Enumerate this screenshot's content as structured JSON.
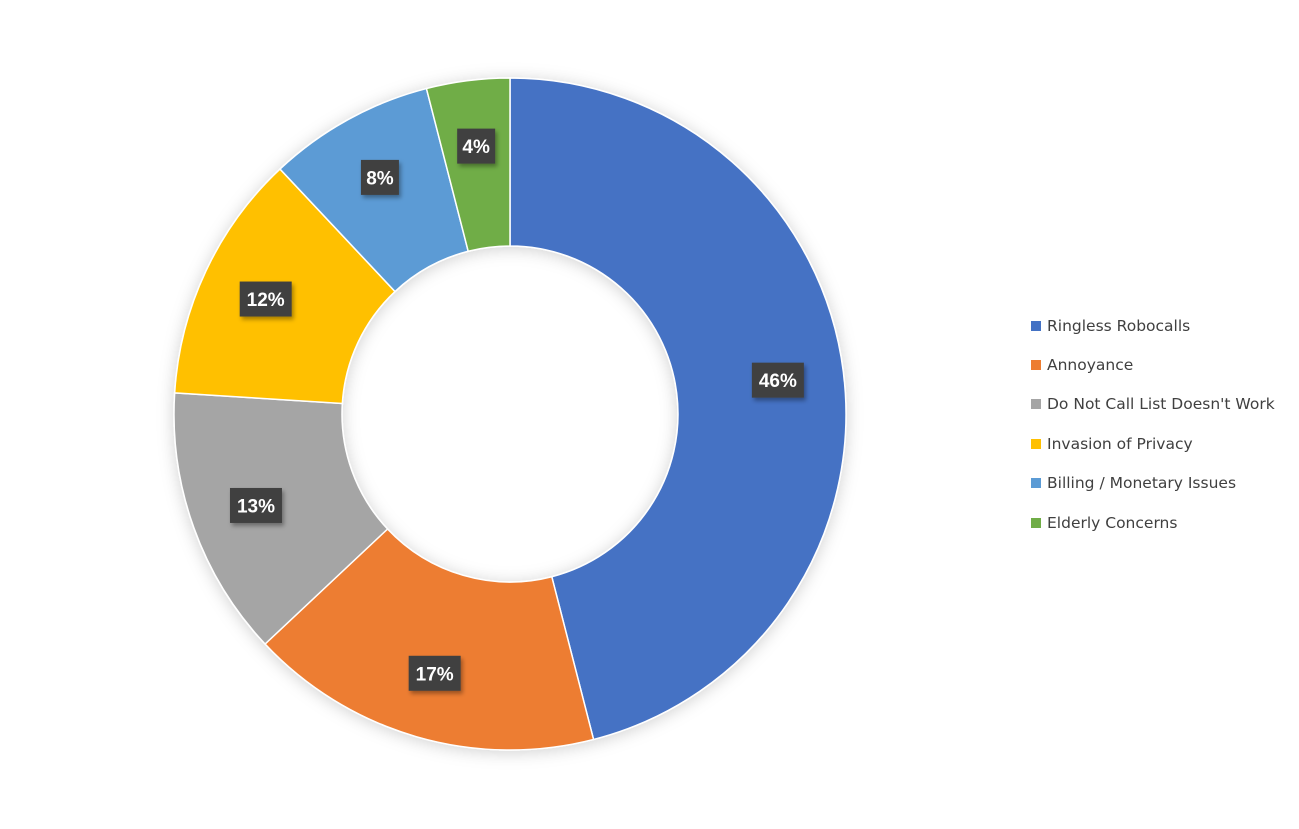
{
  "chart_data": {
    "type": "pie",
    "variant": "donut",
    "title": "",
    "categories": [
      "Ringless Robocalls",
      "Annoyance",
      "Do Not Call List Doesn't Work",
      "Invasion of Privacy",
      "Billing / Monetary Issues",
      "Elderly Concerns"
    ],
    "values": [
      46,
      17,
      13,
      12,
      8,
      4
    ],
    "data_labels": [
      "46%",
      "17%",
      "13%",
      "12%",
      "8%",
      "4%"
    ],
    "colors": [
      "#4472C4",
      "#ED7D31",
      "#A5A5A5",
      "#FFC000",
      "#5B9BD5",
      "#70AD47"
    ],
    "start_angle": "12 o'clock",
    "direction": "clockwise",
    "legend_position": "right"
  }
}
